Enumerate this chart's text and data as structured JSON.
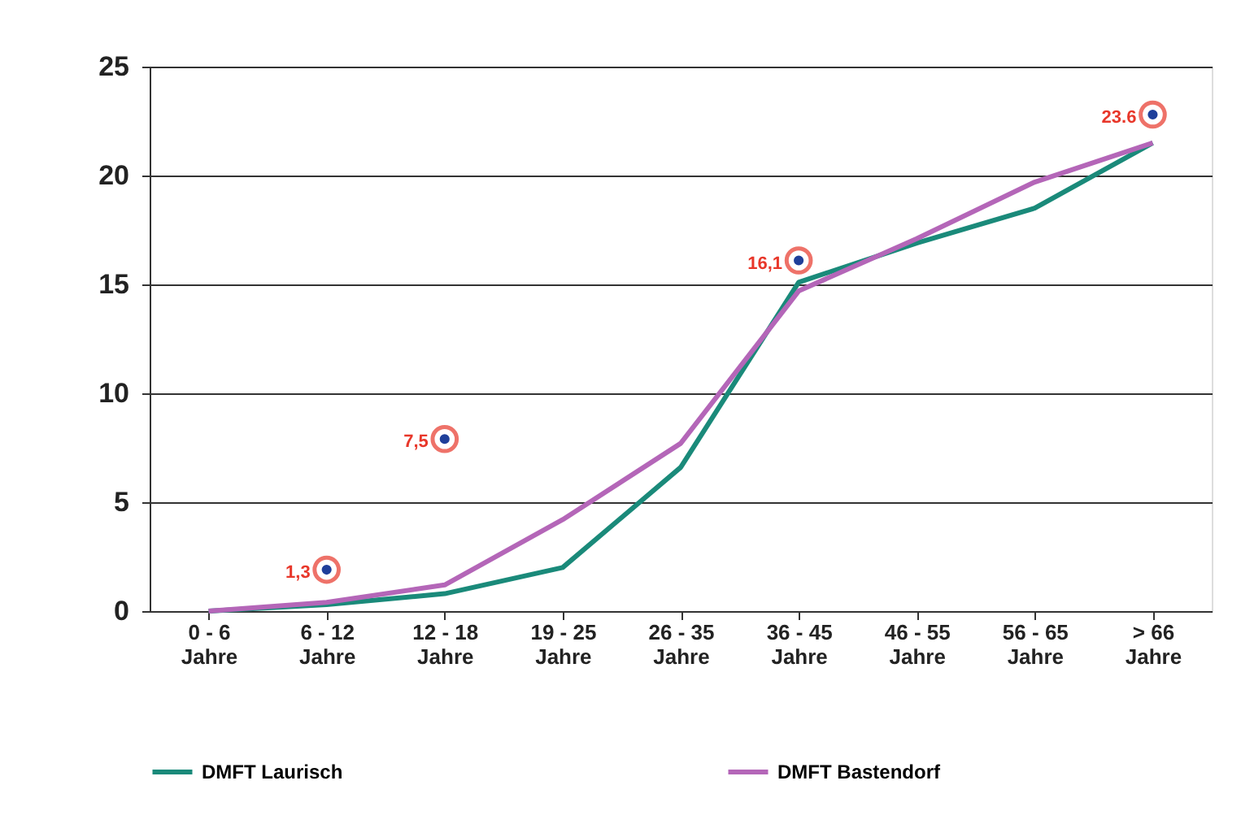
{
  "chart_data": {
    "type": "line",
    "categories": [
      "0 - 6\nJahre",
      "6 - 12\nJahre",
      "12 - 18\nJahre",
      "19 - 25\nJahre",
      "26 - 35\nJahre",
      "36 - 45\nJahre",
      "46 - 55\nJahre",
      "56 - 65\nJahre",
      "> 66\nJahre"
    ],
    "series": [
      {
        "name": "DMFT Laurisch",
        "color": "#1a8a7a",
        "values": [
          0,
          0.3,
          0.8,
          2.0,
          6.6,
          15.1,
          16.9,
          18.5,
          21.5
        ]
      },
      {
        "name": "DMFT Bastendorf",
        "color": "#b466b8",
        "values": [
          0,
          0.4,
          1.2,
          4.2,
          7.7,
          14.7,
          17.1,
          19.7,
          21.5
        ]
      }
    ],
    "annotations": [
      {
        "text": "1,3",
        "x": "6 - 12\nJahre",
        "y": 1.9
      },
      {
        "text": "7,5",
        "x": "12 - 18\nJahre",
        "y": 7.9
      },
      {
        "text": "16,1",
        "x": "36 - 45\nJahre",
        "y": 16.1
      },
      {
        "text": "23.6",
        "x": "> 66\nJahre",
        "y": 22.8
      }
    ],
    "ylim": [
      0,
      25
    ],
    "yticks": [
      0,
      5,
      10,
      15,
      20,
      25
    ],
    "grid": "y",
    "legend": "bottom",
    "marker": "none",
    "line_style": "solid"
  }
}
